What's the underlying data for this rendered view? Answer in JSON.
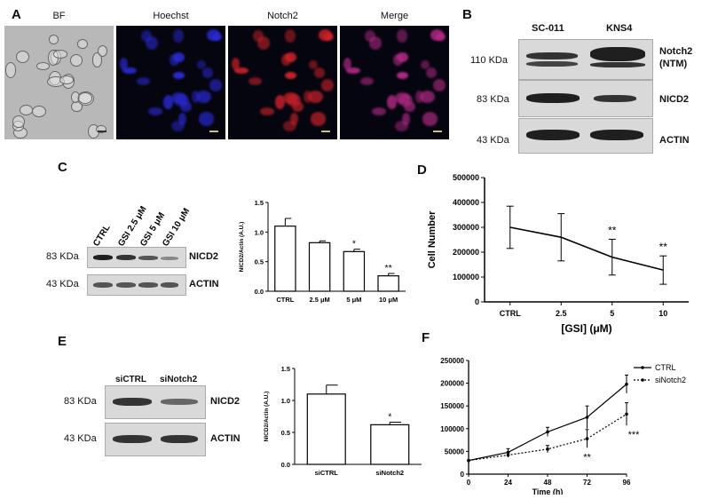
{
  "panelA": {
    "letter": "A",
    "channels": [
      "BF",
      "Hoechst",
      "Notch2",
      "Merge"
    ]
  },
  "panelB": {
    "letter": "B",
    "columns": [
      "SC-011",
      "KNS4"
    ],
    "rows": [
      {
        "kda": "110 KDa",
        "label": "Notch2",
        "sublabel": "(NTM)"
      },
      {
        "kda": "83 KDa",
        "label": "NICD2"
      },
      {
        "kda": "43 KDa",
        "label": "ACTIN"
      }
    ]
  },
  "panelC": {
    "letter": "C",
    "lanes": [
      "CTRL",
      "GSI 2.5 μM",
      "GSI 5 μM",
      "GSI 10 μM"
    ],
    "rows": [
      {
        "kda": "83 KDa",
        "label": "NICD2"
      },
      {
        "kda": "43 KDa",
        "label": "ACTIN"
      }
    ]
  },
  "panelD": {
    "letter": "D"
  },
  "panelE": {
    "letter": "E",
    "lanes": [
      "siCTRL",
      "siNotch2"
    ],
    "rows": [
      {
        "kda": "83 KDa",
        "label": "NICD2"
      },
      {
        "kda": "43 KDa",
        "label": "ACTIN"
      }
    ]
  },
  "panelF": {
    "letter": "F"
  },
  "chart_data": [
    {
      "id": "C",
      "type": "bar",
      "categories": [
        "CTRL",
        "2.5 μM",
        "5 μM",
        "10 μM"
      ],
      "values": [
        1.1,
        0.82,
        0.67,
        0.26
      ],
      "errors": [
        0.13,
        0.03,
        0.04,
        0.04
      ],
      "significance": [
        "",
        "",
        "*",
        "**"
      ],
      "ylabel": "NICD2/Actin (A.U.)",
      "ylim": [
        0,
        1.5
      ],
      "yticks": [
        "0.0",
        "0.5",
        "1.0",
        "1.5"
      ]
    },
    {
      "id": "D",
      "type": "line",
      "categories": [
        "CTRL",
        "2.5",
        "5",
        "10"
      ],
      "values": [
        300000,
        260000,
        180000,
        128000
      ],
      "errors": [
        85000,
        95000,
        72000,
        57000
      ],
      "significance": [
        "",
        "",
        "**",
        "**"
      ],
      "ylabel": "Cell Number",
      "xlabel": "[GSI] (μM)",
      "ylim": [
        0,
        500000
      ],
      "yticks": [
        "0",
        "100000",
        "200000",
        "300000",
        "400000",
        "500000"
      ]
    },
    {
      "id": "E",
      "type": "bar",
      "categories": [
        "siCTRL",
        "siNotch2"
      ],
      "values": [
        1.1,
        0.62
      ],
      "errors": [
        0.14,
        0.04
      ],
      "significance": [
        "",
        "*"
      ],
      "ylabel": "NICD2/Actin (A.U.)",
      "ylim": [
        0,
        1.5
      ],
      "yticks": [
        "0.0",
        "0.5",
        "1.0",
        "1.5"
      ]
    },
    {
      "id": "F",
      "type": "line",
      "x": [
        0,
        24,
        48,
        72,
        96
      ],
      "xticks": [
        "0",
        "24",
        "48",
        "72",
        "96"
      ],
      "series": [
        {
          "name": "CTRL",
          "values": [
            30000,
            48000,
            93000,
            125000,
            198000
          ],
          "errors": [
            0,
            8000,
            10000,
            25000,
            20000
          ],
          "style": "solid"
        },
        {
          "name": "siNotch2",
          "values": [
            30000,
            42000,
            55000,
            78000,
            132000
          ],
          "errors": [
            0,
            5000,
            8000,
            20000,
            25000
          ],
          "style": "dotted"
        }
      ],
      "significance": [
        {
          "x": 72,
          "text": "**"
        },
        {
          "x": 96,
          "text": "***"
        }
      ],
      "xlabel": "Time (h)",
      "ylim": [
        0,
        250000
      ],
      "yticks": [
        "0",
        "50000",
        "100000",
        "150000",
        "200000",
        "250000"
      ]
    }
  ]
}
